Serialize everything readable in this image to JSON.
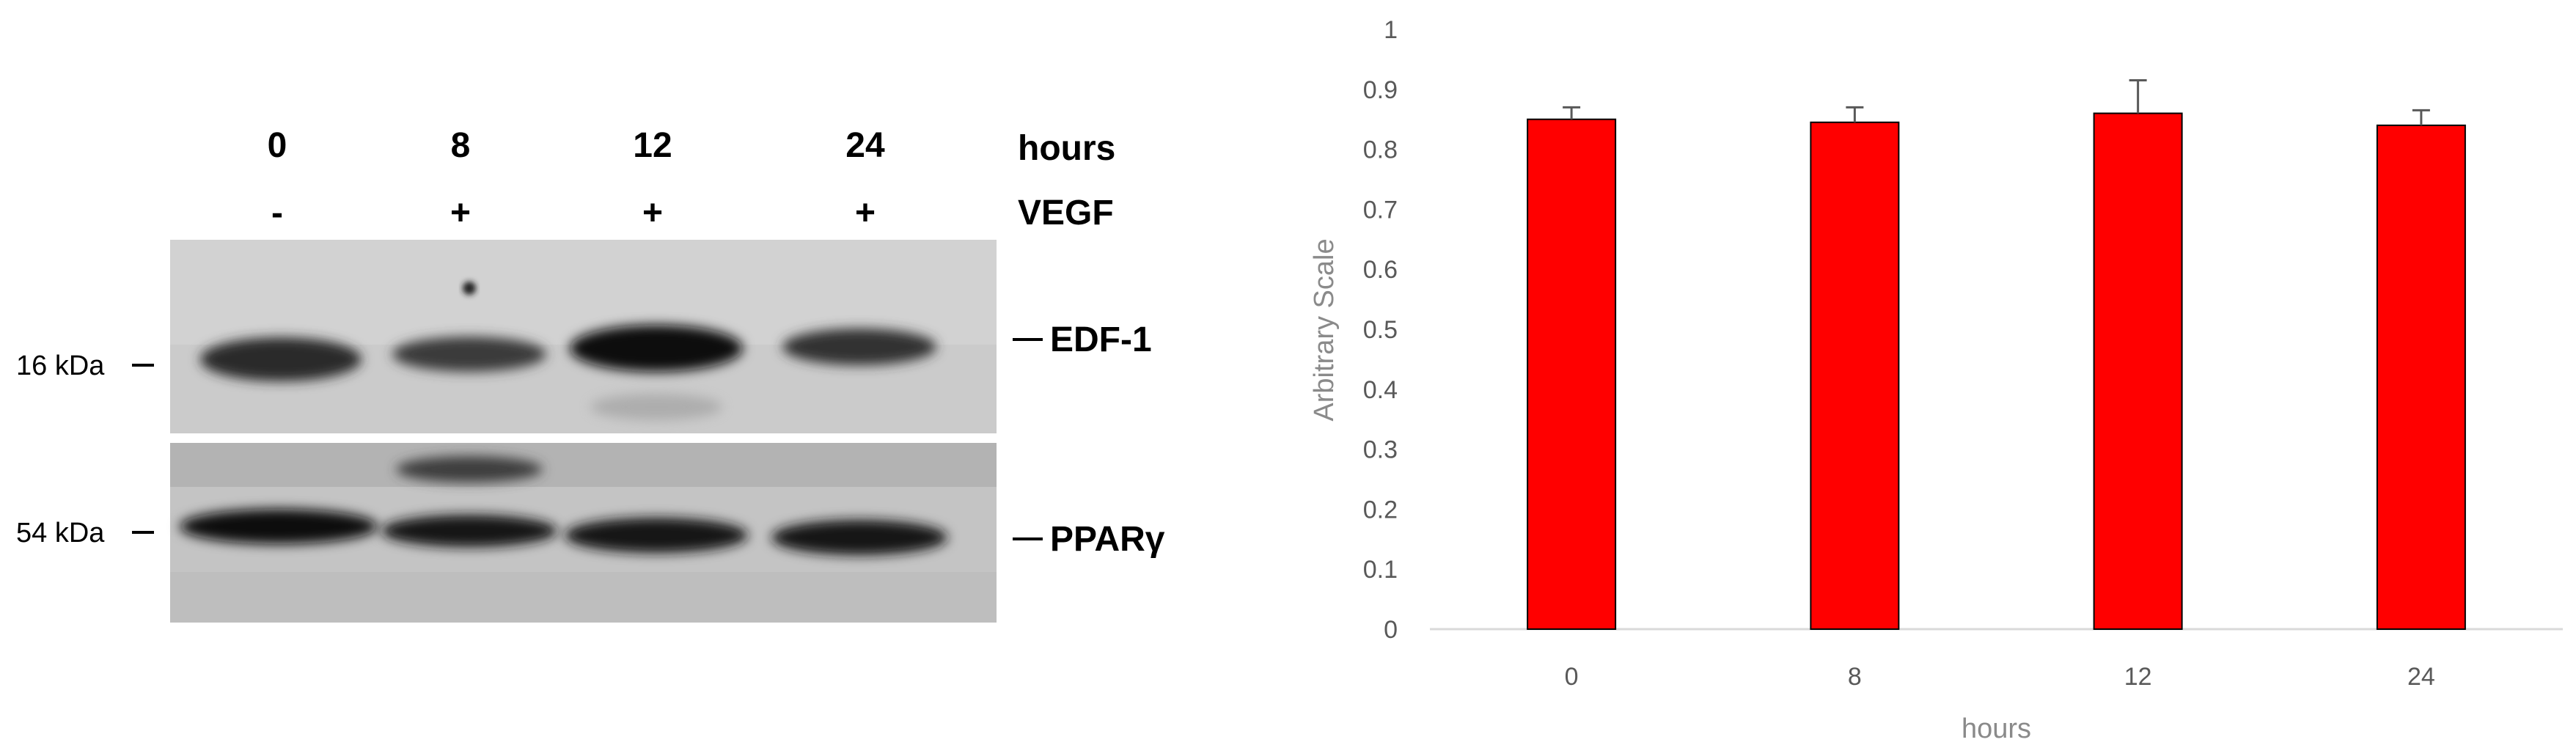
{
  "blot": {
    "lanes": [
      {
        "hours": "0",
        "vegf": "-"
      },
      {
        "hours": "8",
        "vegf": "+"
      },
      {
        "hours": "12",
        "vegf": "+"
      },
      {
        "hours": "24",
        "vegf": "+"
      }
    ],
    "row_labels": {
      "hours": "hours",
      "vegf": "VEGF"
    },
    "bands": {
      "top": "EDF-1",
      "bottom": "PPARγ"
    },
    "markers": {
      "top": "16 kDa",
      "bottom": "54 kDa"
    },
    "colors": {
      "membrane": "#cfcfcf",
      "band": "#1a1a1a"
    }
  },
  "chart_data": {
    "type": "bar",
    "categories": [
      "0",
      "8",
      "12",
      "24"
    ],
    "values": [
      0.85,
      0.845,
      0.86,
      0.84
    ],
    "errors": [
      0.02,
      0.025,
      0.055,
      0.025
    ],
    "xlabel": "hours",
    "ylabel": "Arbitrary Scale",
    "ylim": [
      0,
      1
    ],
    "yticks": [
      "0",
      "0.1",
      "0.2",
      "0.3",
      "0.4",
      "0.5",
      "0.6",
      "0.7",
      "0.8",
      "0.9",
      "1"
    ],
    "bar_color": "#ff0000",
    "grid": false,
    "legend": "none"
  }
}
